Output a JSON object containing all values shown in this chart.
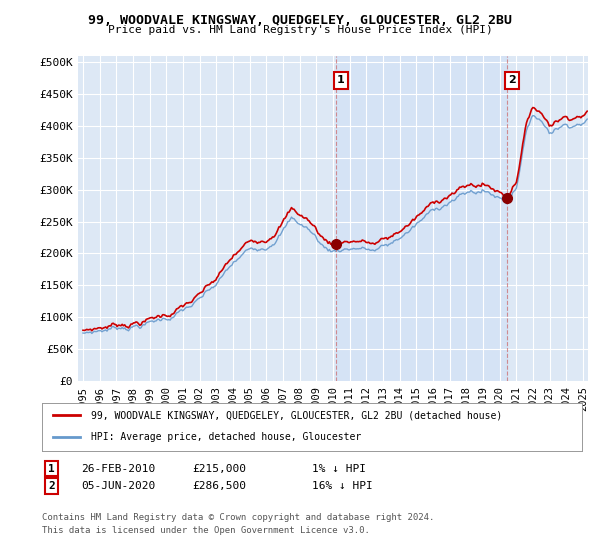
{
  "title1": "99, WOODVALE KINGSWAY, QUEDGELEY, GLOUCESTER, GL2 2BU",
  "title2": "Price paid vs. HM Land Registry's House Price Index (HPI)",
  "ylabel_ticks": [
    "£0",
    "£50K",
    "£100K",
    "£150K",
    "£200K",
    "£250K",
    "£300K",
    "£350K",
    "£400K",
    "£450K",
    "£500K"
  ],
  "ytick_values": [
    0,
    50000,
    100000,
    150000,
    200000,
    250000,
    300000,
    350000,
    400000,
    450000,
    500000
  ],
  "ylim": [
    0,
    510000
  ],
  "xlim_start": 1994.7,
  "xlim_end": 2025.3,
  "hpi_color": "#6699cc",
  "price_color": "#cc0000",
  "vline_color": "#cc6666",
  "background_color": "#dde8f5",
  "shaded_color": "#c8daf0",
  "grid_color": "#ffffff",
  "legend_label_price": "99, WOODVALE KINGSWAY, QUEDGELEY, GLOUCESTER, GL2 2BU (detached house)",
  "legend_label_hpi": "HPI: Average price, detached house, Gloucester",
  "annotation1": {
    "label": "1",
    "date_x": 2010.15,
    "price": 215000,
    "text_date": "26-FEB-2010",
    "text_price": "£215,000",
    "text_pct": "1% ↓ HPI"
  },
  "annotation2": {
    "label": "2",
    "date_x": 2020.42,
    "price": 286500,
    "text_date": "05-JUN-2020",
    "text_price": "£286,500",
    "text_pct": "16% ↓ HPI"
  },
  "footer1": "Contains HM Land Registry data © Crown copyright and database right 2024.",
  "footer2": "This data is licensed under the Open Government Licence v3.0.",
  "xtick_years": [
    1995,
    1996,
    1997,
    1998,
    1999,
    2000,
    2001,
    2002,
    2003,
    2004,
    2005,
    2006,
    2007,
    2008,
    2009,
    2010,
    2011,
    2012,
    2013,
    2014,
    2015,
    2016,
    2017,
    2018,
    2019,
    2020,
    2021,
    2022,
    2023,
    2024,
    2025
  ]
}
